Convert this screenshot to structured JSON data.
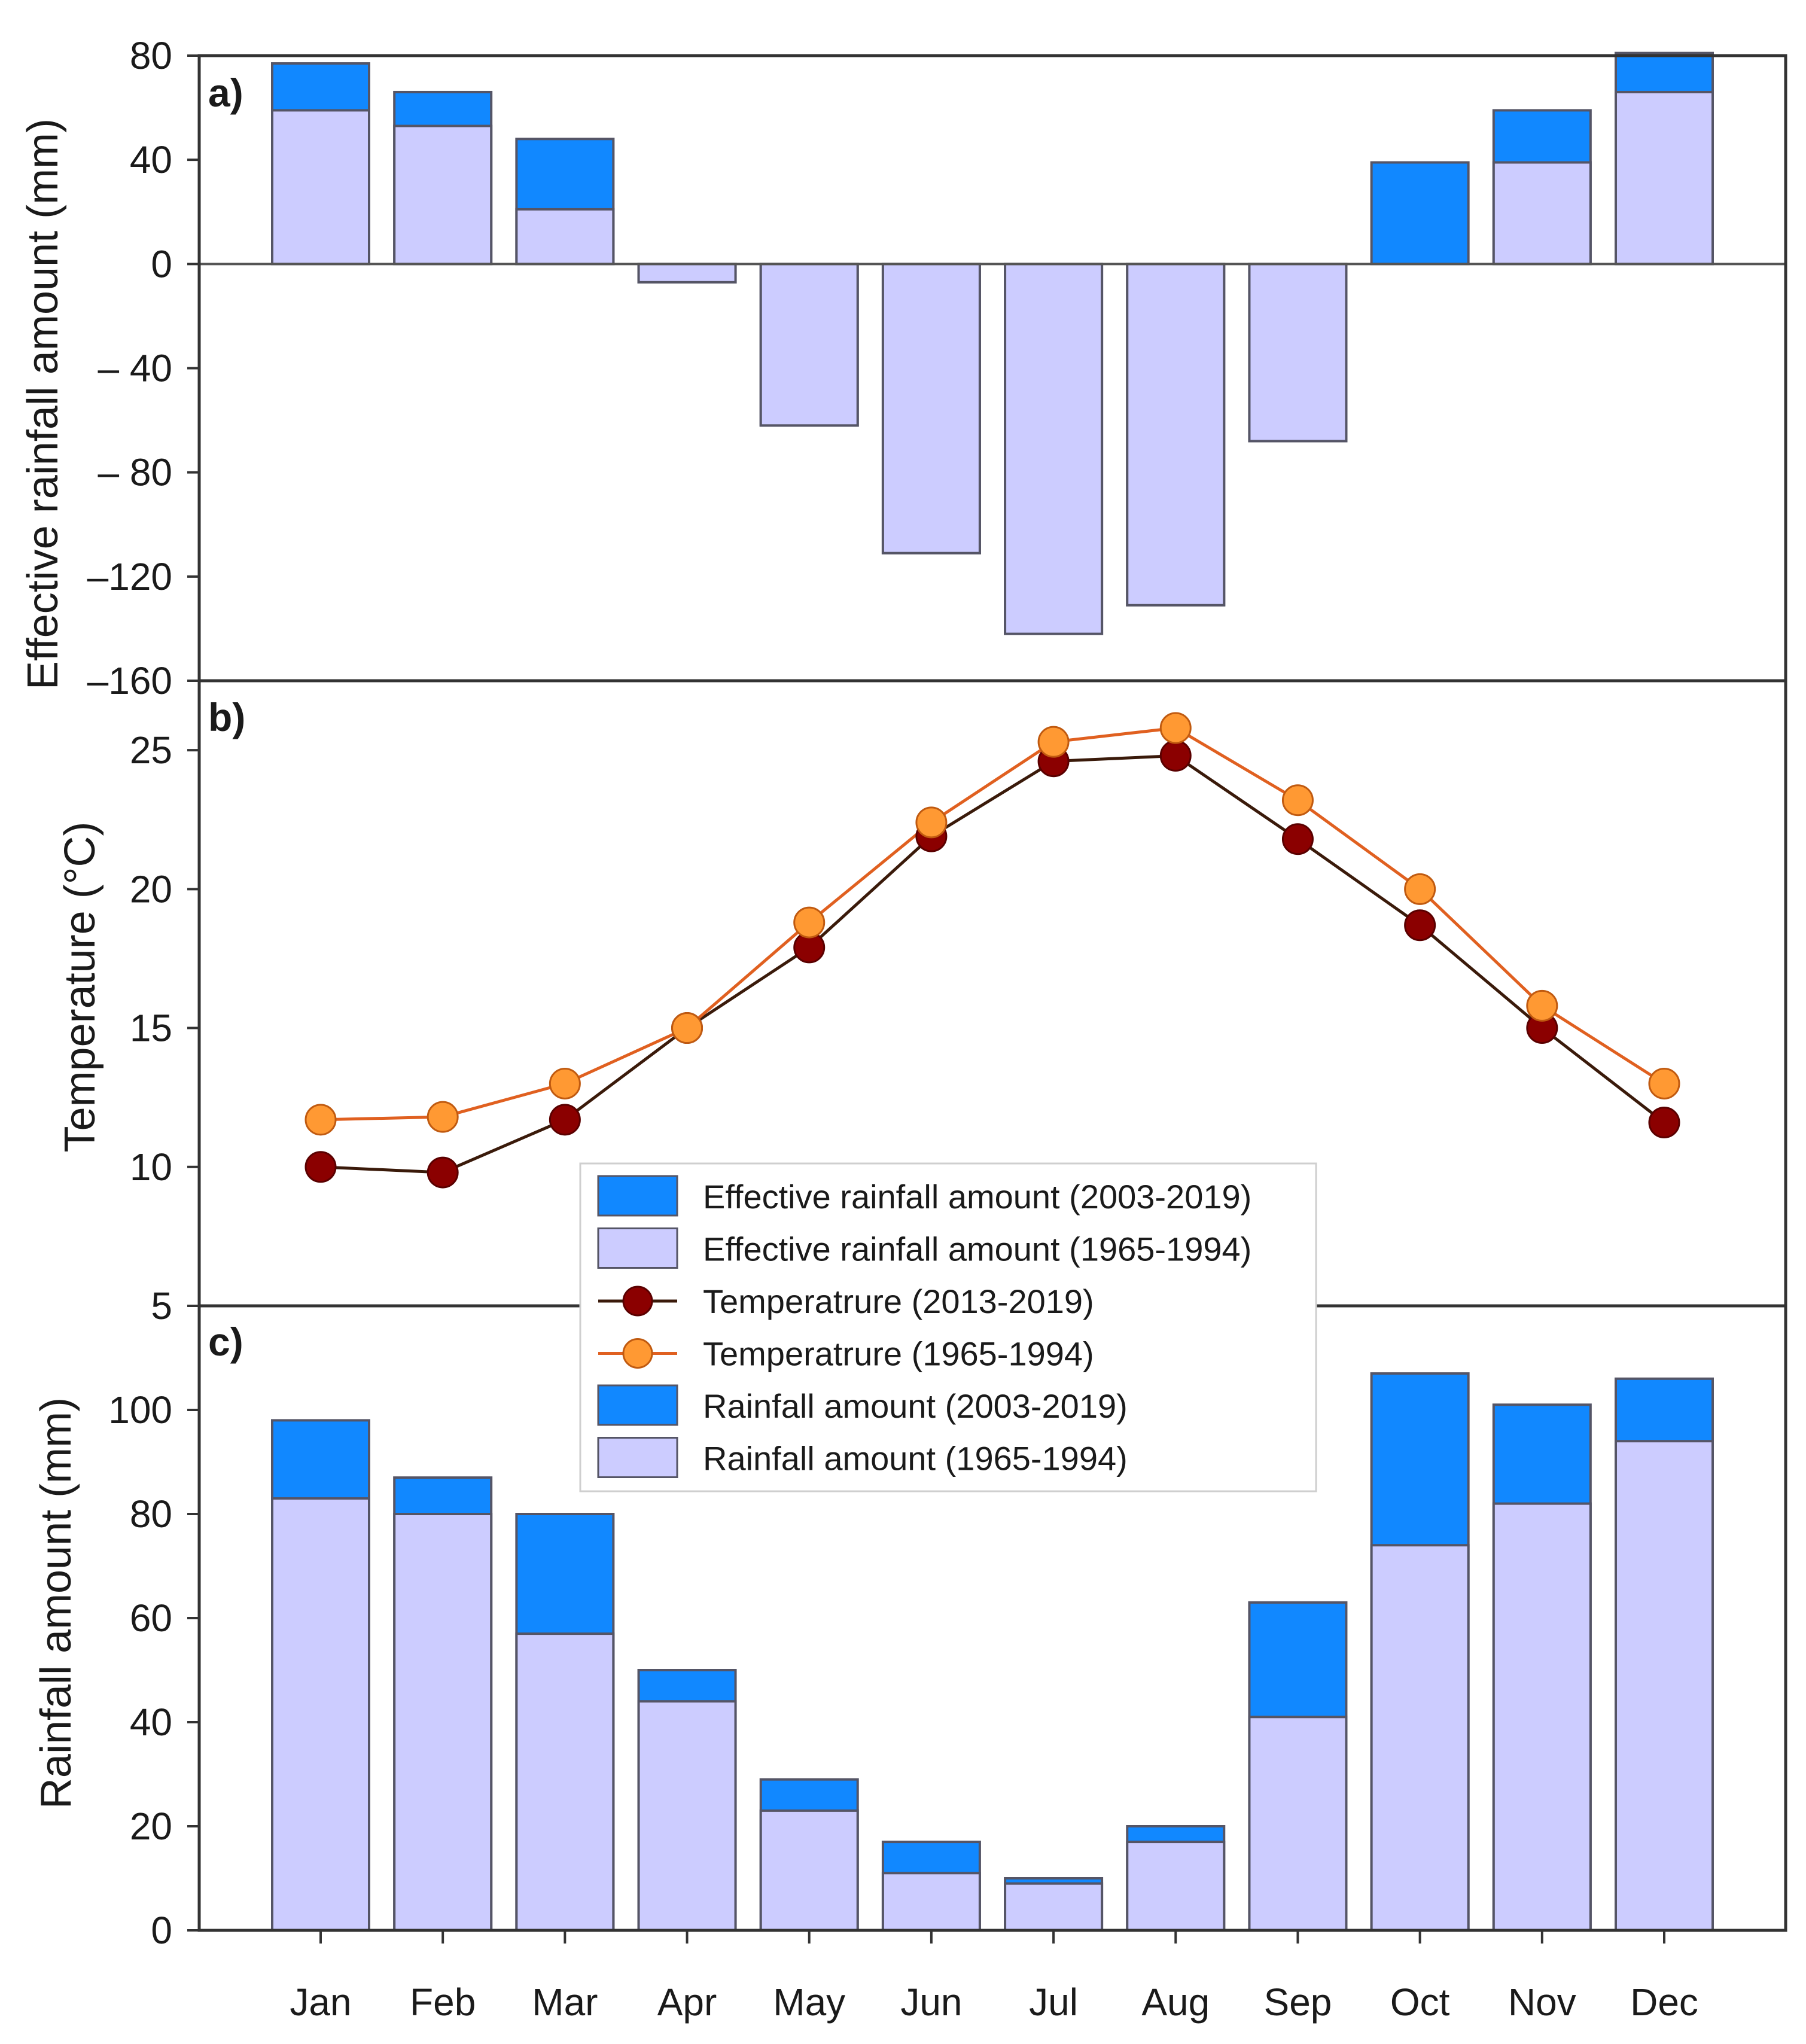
{
  "colors": {
    "new_bar": "#1188ff",
    "old_bar": "#ccccff",
    "temp_new": "#8b0000",
    "temp_old": "#ff9933",
    "temp_old_line": "#e06020",
    "temp_new_line": "#3a1a0a"
  },
  "chart_data": [
    {
      "type": "bar",
      "panel_label": "a)",
      "ylabel": "Effective rainfall amount (mm)",
      "ylim": [
        -160,
        80
      ],
      "yticks": [
        80,
        40,
        0,
        -40,
        -80,
        -120,
        -160
      ],
      "ytick_labels": [
        "80",
        "40",
        "0",
        "– 40",
        "– 80",
        "–120",
        "–160"
      ],
      "categories": [
        "Jan",
        "Feb",
        "Mar",
        "Apr",
        "May",
        "Jun",
        "Jul",
        "Aug",
        "Sep",
        "Oct",
        "Nov",
        "Dec"
      ],
      "stacked_overlay": true,
      "series": [
        {
          "name": "Effective rainfall amount (2003-2019)",
          "values": [
            77,
            66,
            48,
            -7,
            -62,
            -111,
            -142,
            -131,
            -68,
            39,
            59,
            81
          ]
        },
        {
          "name": "Effective rainfall amount (1965-1994)",
          "values": [
            59,
            53,
            21,
            -7,
            -62,
            -111,
            -142,
            -131,
            -68,
            0,
            39,
            66
          ]
        }
      ]
    },
    {
      "type": "line",
      "panel_label": "b)",
      "ylabel": "Temperature (°C)",
      "ylim": [
        5,
        27.5
      ],
      "yticks": [
        5,
        10,
        15,
        20,
        25
      ],
      "ytick_labels": [
        "5",
        "10",
        "15",
        "20",
        "25"
      ],
      "categories": [
        "Jan",
        "Feb",
        "Mar",
        "Apr",
        "May",
        "Jun",
        "Jul",
        "Aug",
        "Sep",
        "Oct",
        "Nov",
        "Dec"
      ],
      "series": [
        {
          "name": "Temperatrure (2013-2019)",
          "values": [
            10.0,
            9.8,
            11.7,
            15.0,
            17.9,
            21.9,
            24.6,
            24.8,
            21.8,
            18.7,
            15.0,
            11.6
          ]
        },
        {
          "name": "Temperatrure (1965-1994)",
          "values": [
            11.7,
            11.8,
            13.0,
            15.0,
            18.8,
            22.4,
            25.3,
            25.8,
            23.2,
            20.0,
            15.8,
            13.0
          ]
        }
      ]
    },
    {
      "type": "bar",
      "panel_label": "c)",
      "ylabel": "Rainfall amount (mm)",
      "ylim": [
        0,
        120
      ],
      "yticks": [
        0,
        20,
        40,
        60,
        80,
        100
      ],
      "ytick_labels": [
        "0",
        "20",
        "40",
        "60",
        "80",
        "100"
      ],
      "categories": [
        "Jan",
        "Feb",
        "Mar",
        "Apr",
        "May",
        "Jun",
        "Jul",
        "Aug",
        "Sep",
        "Oct",
        "Nov",
        "Dec"
      ],
      "stacked_overlay": true,
      "series": [
        {
          "name": "Rainfall amount (2003-2019)",
          "values": [
            98,
            87,
            80,
            50,
            29,
            17,
            10,
            20,
            63,
            107,
            101,
            106
          ]
        },
        {
          "name": "Rainfall amount (1965-1994)",
          "values": [
            83,
            80,
            57,
            44,
            23,
            11,
            9,
            17,
            41,
            74,
            82,
            94
          ]
        }
      ]
    }
  ],
  "legend": {
    "entries": [
      {
        "label": "Effective rainfall amount (2003-2019)",
        "kind": "box-new"
      },
      {
        "label": "Effective rainfall amount (1965-1994)",
        "kind": "box-old"
      },
      {
        "label": "Temperatrure (2013-2019)",
        "kind": "line-new"
      },
      {
        "label": "Temperatrure (1965-1994)",
        "kind": "line-old"
      },
      {
        "label": "Rainfall amount (2003-2019)",
        "kind": "box-new"
      },
      {
        "label": "Rainfall amount (1965-1994)",
        "kind": "box-old"
      }
    ]
  }
}
